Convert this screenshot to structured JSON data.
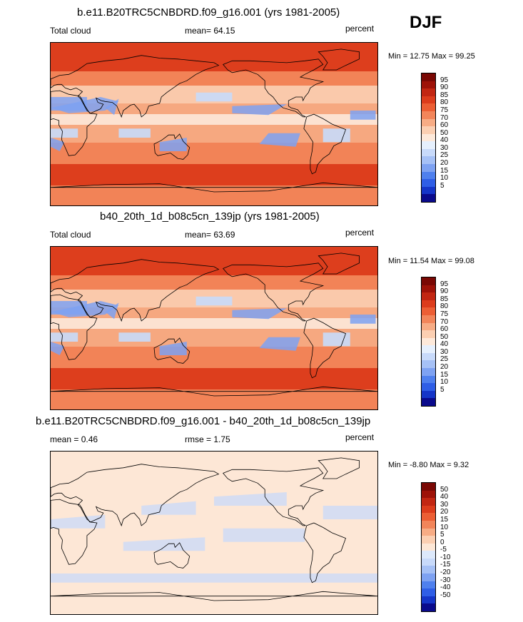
{
  "season": "DJF",
  "panels": [
    {
      "title": "b.e11.B20TRC5CNBDRD.f09_g16.001 (yrs 1981-2005)",
      "left_label": "Total cloud",
      "mid_label": "mean=  64.15",
      "right_label": "percent",
      "minmax": "Min =  12.75 Max =  99.25",
      "kind": "abs",
      "colorbar": {
        "colors": [
          "#0a0a8c",
          "#1535c8",
          "#2f5ee6",
          "#4f80ee",
          "#7ea2f2",
          "#a6c1f6",
          "#c8dafa",
          "#e6f0fd",
          "#fde9da",
          "#fbcfb2",
          "#f7ac85",
          "#f2855a",
          "#ec5e34",
          "#dc3c1c",
          "#c22612",
          "#9e1208",
          "#7a0804"
        ],
        "ticks": [
          "95",
          "90",
          "85",
          "80",
          "75",
          "70",
          "60",
          "50",
          "40",
          "30",
          "25",
          "20",
          "15",
          "10",
          "5"
        ]
      }
    },
    {
      "title": "b40_20th_1d_b08c5cn_139jp (yrs 1981-2005)",
      "left_label": "Total cloud",
      "mid_label": "mean=  63.69",
      "right_label": "percent",
      "minmax": "Min =  11.54 Max =  99.08",
      "kind": "abs",
      "colorbar": {
        "colors": [
          "#0a0a8c",
          "#1535c8",
          "#2f5ee6",
          "#4f80ee",
          "#7ea2f2",
          "#a6c1f6",
          "#c8dafa",
          "#e6f0fd",
          "#fde9da",
          "#fbcfb2",
          "#f7ac85",
          "#f2855a",
          "#ec5e34",
          "#dc3c1c",
          "#c22612",
          "#9e1208",
          "#7a0804"
        ],
        "ticks": [
          "95",
          "90",
          "85",
          "80",
          "75",
          "70",
          "60",
          "50",
          "40",
          "30",
          "25",
          "20",
          "15",
          "10",
          "5"
        ]
      }
    },
    {
      "title": "b.e11.B20TRC5CNBDRD.f09_g16.001 - b40_20th_1d_b08c5cn_139jp",
      "left_label": "mean =   0.46",
      "mid_label": "rmse =   1.75",
      "right_label": "percent",
      "minmax": "Min =  -8.80 Max =   9.32",
      "kind": "diff",
      "colorbar": {
        "colors": [
          "#0a0a8c",
          "#1535c8",
          "#2f5ee6",
          "#4f80ee",
          "#7ea2f2",
          "#a6c1f6",
          "#c8dafa",
          "#dde9fb",
          "#fde7d6",
          "#fbcfb2",
          "#f7ac85",
          "#f2855a",
          "#ec5e34",
          "#dc3c1c",
          "#c22612",
          "#9e1208",
          "#7a0804"
        ],
        "ticks": [
          "50",
          "40",
          "30",
          "20",
          "15",
          "10",
          "5",
          "0",
          "-5",
          "-10",
          "-15",
          "-20",
          "-30",
          "-40",
          "-50"
        ]
      }
    }
  ]
}
